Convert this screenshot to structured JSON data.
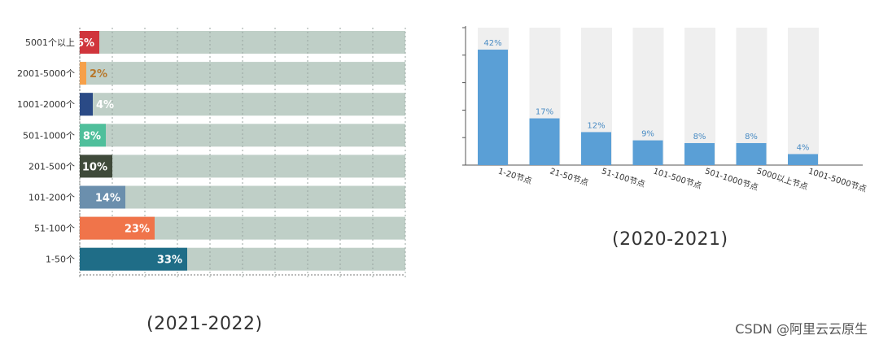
{
  "chart_data": [
    {
      "type": "bar",
      "orientation": "horizontal",
      "categories": [
        "5001个以上",
        "2001-5000个",
        "1001-2000个",
        "501-1000个",
        "201-500个",
        "101-200个",
        "51-100个",
        "1-50个"
      ],
      "values": [
        6,
        2,
        4,
        8,
        10,
        14,
        23,
        33
      ],
      "value_labels": [
        "6%",
        "2%",
        "4%",
        "8%",
        "10%",
        "14%",
        "23%",
        "33%"
      ],
      "colors": [
        "#d0353c",
        "#f6a04a",
        "#2a4a86",
        "#4fbf9b",
        "#3f4a3a",
        "#6b8fad",
        "#f0744a",
        "#1f6d87"
      ],
      "track_color": "#bfcfc7",
      "xlim": [
        0,
        100
      ],
      "grid": true,
      "caption": "(2021-2022)"
    },
    {
      "type": "bar",
      "categories": [
        "1-20节点",
        "21-50节点",
        "51-100节点",
        "101-500节点",
        "501-1000节点",
        "5000以上节点",
        "1001-5000节点"
      ],
      "values": [
        42,
        17,
        12,
        9,
        8,
        8,
        4
      ],
      "value_labels": [
        "42%",
        "17%",
        "12%",
        "9%",
        "8%",
        "8%",
        "4%"
      ],
      "bar_color": "#5a9fd6",
      "band_color": "#efefef",
      "ylim": [
        0,
        50
      ],
      "caption": "(2020-2021)"
    }
  ],
  "watermark": "CSDN @阿里云云原生"
}
